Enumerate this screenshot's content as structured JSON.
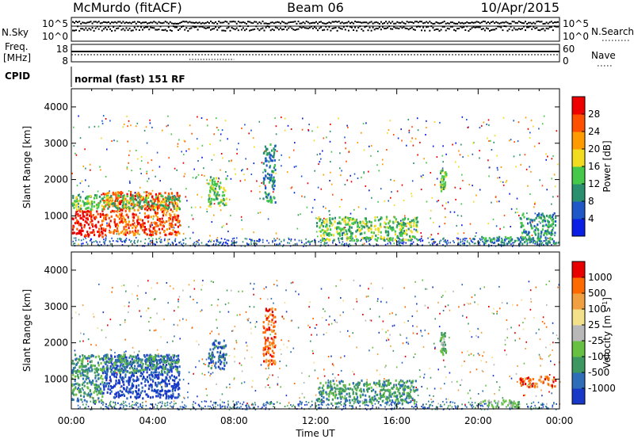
{
  "header": {
    "station": "McMurdo (fitACF)",
    "beam": "Beam 06",
    "date": "10/Apr/2015"
  },
  "top_panels": {
    "nsky_label": "N.Sky",
    "nsky_ticks": [
      "10^5",
      "10^0"
    ],
    "nsearch_label": "N.Search",
    "nsearch_ticks": [
      "10^5",
      "10^0"
    ],
    "freq_label_1": "Freq.",
    "freq_label_2": "[MHz]",
    "freq_ticks": [
      "18",
      "8"
    ],
    "nave_label": "Nave",
    "nave_ticks": [
      "60",
      "0"
    ],
    "cpid_label": "CPID",
    "cpid_value": "normal (fast) 151 RF"
  },
  "chart_data": [
    {
      "type": "heatmap",
      "title": "",
      "xlabel": "Time UT",
      "ylabel": "Slant Range [km]",
      "x_ticks": [
        "00:00",
        "04:00",
        "08:00",
        "12:00",
        "16:00",
        "20:00",
        "00:00"
      ],
      "xlim_hours": [
        0,
        24
      ],
      "ylim_km": [
        180,
        4500
      ],
      "y_ticks": [
        1000,
        2000,
        3000,
        4000
      ],
      "colorbar": {
        "label": "Power [dB]",
        "ticks": [
          "4",
          "8",
          "12",
          "16",
          "20",
          "24",
          "28"
        ],
        "colors": [
          "#0a1ee6",
          "#1f57c8",
          "#2a8f6e",
          "#46c84b",
          "#f2dc20",
          "#ff9a00",
          "#ff5000",
          "#ee0000"
        ]
      },
      "regions": [
        {
          "t": [
            0.0,
            1.5
          ],
          "r": [
            450,
            1200
          ],
          "level": 7
        },
        {
          "t": [
            1.5,
            5.3
          ],
          "r": [
            500,
            1700
          ],
          "level": 6
        },
        {
          "t": [
            0.0,
            5.3
          ],
          "r": [
            1200,
            1600
          ],
          "level": 3
        },
        {
          "t": [
            6.7,
            7.6
          ],
          "r": [
            1300,
            2100
          ],
          "level": 3
        },
        {
          "t": [
            9.4,
            10.0
          ],
          "r": [
            1400,
            3000
          ],
          "level": 2
        },
        {
          "t": [
            12.0,
            17.0
          ],
          "r": [
            350,
            1000
          ],
          "level": 3
        },
        {
          "t": [
            18.1,
            18.4
          ],
          "r": [
            1700,
            2300
          ],
          "level": 3
        },
        {
          "t": [
            20.0,
            22.0
          ],
          "r": [
            250,
            450
          ],
          "level": 2
        },
        {
          "t": [
            22.0,
            23.8
          ],
          "r": [
            250,
            1100
          ],
          "level": 2
        }
      ]
    },
    {
      "type": "heatmap",
      "title": "",
      "xlabel": "Time UT",
      "ylabel": "Slant Range [km]",
      "x_ticks": [
        "00:00",
        "04:00",
        "08:00",
        "12:00",
        "16:00",
        "20:00",
        "00:00"
      ],
      "xlim_hours": [
        0,
        24
      ],
      "ylim_km": [
        180,
        4500
      ],
      "y_ticks": [
        1000,
        2000,
        3000,
        4000
      ],
      "colorbar": {
        "label": "Velocity [m s^-1]",
        "ticks": [
          "1000",
          "500",
          "100",
          "25",
          "-25",
          "-100",
          "-500",
          "-1000"
        ],
        "colors": [
          "#1838c8",
          "#2e6eb8",
          "#3d9760",
          "#68c043",
          "#b8b8b8",
          "#f2e08a",
          "#f0a040",
          "#ff6a00",
          "#e80000"
        ]
      },
      "regions": [
        {
          "t": [
            0.0,
            1.5
          ],
          "r": [
            400,
            1300
          ],
          "level": 2
        },
        {
          "t": [
            1.5,
            5.3
          ],
          "r": [
            500,
            1700
          ],
          "level": 0
        },
        {
          "t": [
            0.0,
            5.3
          ],
          "r": [
            1200,
            1700
          ],
          "level": 2
        },
        {
          "t": [
            6.7,
            7.6
          ],
          "r": [
            1300,
            2100
          ],
          "level": 1
        },
        {
          "t": [
            9.4,
            10.0
          ],
          "r": [
            1400,
            3000
          ],
          "level": 7
        },
        {
          "t": [
            12.0,
            17.0
          ],
          "r": [
            350,
            1000
          ],
          "level": 2
        },
        {
          "t": [
            18.1,
            18.4
          ],
          "r": [
            1700,
            2300
          ],
          "level": 3
        },
        {
          "t": [
            20.0,
            22.0
          ],
          "r": [
            250,
            450
          ],
          "level": 3
        },
        {
          "t": [
            22.0,
            23.8
          ],
          "r": [
            800,
            1100
          ],
          "level": 7
        }
      ]
    }
  ]
}
